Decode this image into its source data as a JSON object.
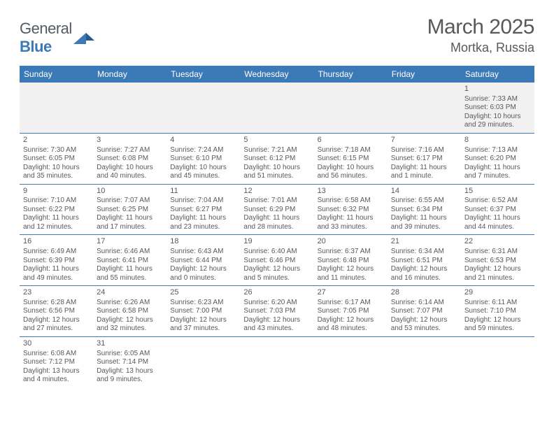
{
  "logo": {
    "part1": "General",
    "part2": "Blue"
  },
  "title": "March 2025",
  "location": "Mortka, Russia",
  "colors": {
    "accent": "#3b79b7",
    "text": "#58595b",
    "grey_bg": "#f1f1f1"
  },
  "daynames": [
    "Sunday",
    "Monday",
    "Tuesday",
    "Wednesday",
    "Thursday",
    "Friday",
    "Saturday"
  ],
  "days": [
    {
      "date": "1",
      "sunrise": "Sunrise: 7:33 AM",
      "sunset": "Sunset: 6:03 PM",
      "day1": "Daylight: 10 hours",
      "day2": "and 29 minutes."
    },
    {
      "date": "2",
      "sunrise": "Sunrise: 7:30 AM",
      "sunset": "Sunset: 6:05 PM",
      "day1": "Daylight: 10 hours",
      "day2": "and 35 minutes."
    },
    {
      "date": "3",
      "sunrise": "Sunrise: 7:27 AM",
      "sunset": "Sunset: 6:08 PM",
      "day1": "Daylight: 10 hours",
      "day2": "and 40 minutes."
    },
    {
      "date": "4",
      "sunrise": "Sunrise: 7:24 AM",
      "sunset": "Sunset: 6:10 PM",
      "day1": "Daylight: 10 hours",
      "day2": "and 45 minutes."
    },
    {
      "date": "5",
      "sunrise": "Sunrise: 7:21 AM",
      "sunset": "Sunset: 6:12 PM",
      "day1": "Daylight: 10 hours",
      "day2": "and 51 minutes."
    },
    {
      "date": "6",
      "sunrise": "Sunrise: 7:18 AM",
      "sunset": "Sunset: 6:15 PM",
      "day1": "Daylight: 10 hours",
      "day2": "and 56 minutes."
    },
    {
      "date": "7",
      "sunrise": "Sunrise: 7:16 AM",
      "sunset": "Sunset: 6:17 PM",
      "day1": "Daylight: 11 hours",
      "day2": "and 1 minute."
    },
    {
      "date": "8",
      "sunrise": "Sunrise: 7:13 AM",
      "sunset": "Sunset: 6:20 PM",
      "day1": "Daylight: 11 hours",
      "day2": "and 7 minutes."
    },
    {
      "date": "9",
      "sunrise": "Sunrise: 7:10 AM",
      "sunset": "Sunset: 6:22 PM",
      "day1": "Daylight: 11 hours",
      "day2": "and 12 minutes."
    },
    {
      "date": "10",
      "sunrise": "Sunrise: 7:07 AM",
      "sunset": "Sunset: 6:25 PM",
      "day1": "Daylight: 11 hours",
      "day2": "and 17 minutes."
    },
    {
      "date": "11",
      "sunrise": "Sunrise: 7:04 AM",
      "sunset": "Sunset: 6:27 PM",
      "day1": "Daylight: 11 hours",
      "day2": "and 23 minutes."
    },
    {
      "date": "12",
      "sunrise": "Sunrise: 7:01 AM",
      "sunset": "Sunset: 6:29 PM",
      "day1": "Daylight: 11 hours",
      "day2": "and 28 minutes."
    },
    {
      "date": "13",
      "sunrise": "Sunrise: 6:58 AM",
      "sunset": "Sunset: 6:32 PM",
      "day1": "Daylight: 11 hours",
      "day2": "and 33 minutes."
    },
    {
      "date": "14",
      "sunrise": "Sunrise: 6:55 AM",
      "sunset": "Sunset: 6:34 PM",
      "day1": "Daylight: 11 hours",
      "day2": "and 39 minutes."
    },
    {
      "date": "15",
      "sunrise": "Sunrise: 6:52 AM",
      "sunset": "Sunset: 6:37 PM",
      "day1": "Daylight: 11 hours",
      "day2": "and 44 minutes."
    },
    {
      "date": "16",
      "sunrise": "Sunrise: 6:49 AM",
      "sunset": "Sunset: 6:39 PM",
      "day1": "Daylight: 11 hours",
      "day2": "and 49 minutes."
    },
    {
      "date": "17",
      "sunrise": "Sunrise: 6:46 AM",
      "sunset": "Sunset: 6:41 PM",
      "day1": "Daylight: 11 hours",
      "day2": "and 55 minutes."
    },
    {
      "date": "18",
      "sunrise": "Sunrise: 6:43 AM",
      "sunset": "Sunset: 6:44 PM",
      "day1": "Daylight: 12 hours",
      "day2": "and 0 minutes."
    },
    {
      "date": "19",
      "sunrise": "Sunrise: 6:40 AM",
      "sunset": "Sunset: 6:46 PM",
      "day1": "Daylight: 12 hours",
      "day2": "and 5 minutes."
    },
    {
      "date": "20",
      "sunrise": "Sunrise: 6:37 AM",
      "sunset": "Sunset: 6:48 PM",
      "day1": "Daylight: 12 hours",
      "day2": "and 11 minutes."
    },
    {
      "date": "21",
      "sunrise": "Sunrise: 6:34 AM",
      "sunset": "Sunset: 6:51 PM",
      "day1": "Daylight: 12 hours",
      "day2": "and 16 minutes."
    },
    {
      "date": "22",
      "sunrise": "Sunrise: 6:31 AM",
      "sunset": "Sunset: 6:53 PM",
      "day1": "Daylight: 12 hours",
      "day2": "and 21 minutes."
    },
    {
      "date": "23",
      "sunrise": "Sunrise: 6:28 AM",
      "sunset": "Sunset: 6:56 PM",
      "day1": "Daylight: 12 hours",
      "day2": "and 27 minutes."
    },
    {
      "date": "24",
      "sunrise": "Sunrise: 6:26 AM",
      "sunset": "Sunset: 6:58 PM",
      "day1": "Daylight: 12 hours",
      "day2": "and 32 minutes."
    },
    {
      "date": "25",
      "sunrise": "Sunrise: 6:23 AM",
      "sunset": "Sunset: 7:00 PM",
      "day1": "Daylight: 12 hours",
      "day2": "and 37 minutes."
    },
    {
      "date": "26",
      "sunrise": "Sunrise: 6:20 AM",
      "sunset": "Sunset: 7:03 PM",
      "day1": "Daylight: 12 hours",
      "day2": "and 43 minutes."
    },
    {
      "date": "27",
      "sunrise": "Sunrise: 6:17 AM",
      "sunset": "Sunset: 7:05 PM",
      "day1": "Daylight: 12 hours",
      "day2": "and 48 minutes."
    },
    {
      "date": "28",
      "sunrise": "Sunrise: 6:14 AM",
      "sunset": "Sunset: 7:07 PM",
      "day1": "Daylight: 12 hours",
      "day2": "and 53 minutes."
    },
    {
      "date": "29",
      "sunrise": "Sunrise: 6:11 AM",
      "sunset": "Sunset: 7:10 PM",
      "day1": "Daylight: 12 hours",
      "day2": "and 59 minutes."
    },
    {
      "date": "30",
      "sunrise": "Sunrise: 6:08 AM",
      "sunset": "Sunset: 7:12 PM",
      "day1": "Daylight: 13 hours",
      "day2": "and 4 minutes."
    },
    {
      "date": "31",
      "sunrise": "Sunrise: 6:05 AM",
      "sunset": "Sunset: 7:14 PM",
      "day1": "Daylight: 13 hours",
      "day2": "and 9 minutes."
    }
  ],
  "startOffset": 6,
  "totalCells": 42
}
